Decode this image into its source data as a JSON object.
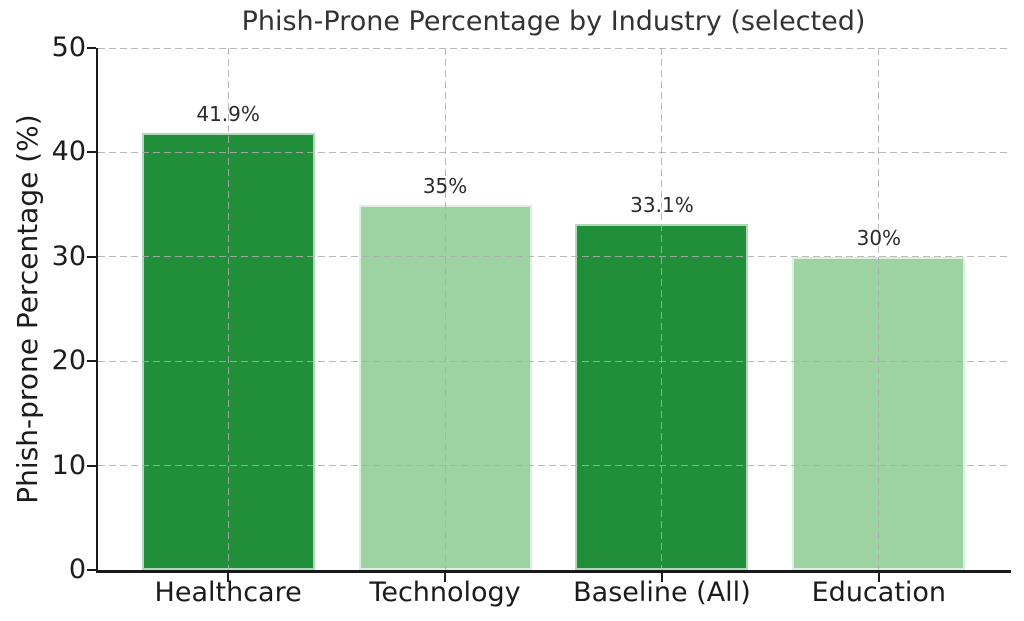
{
  "chart_data": {
    "type": "bar",
    "title": "Phish-Prone Percentage by Industry (selected)",
    "xlabel": "",
    "ylabel": "Phish-prone Percentage (%)",
    "categories": [
      "Healthcare",
      "Technology",
      "Baseline (All)",
      "Education"
    ],
    "values": [
      41.9,
      35,
      33.1,
      30
    ],
    "value_labels": [
      "41.9%",
      "35%",
      "33.1%",
      "30%"
    ],
    "series": [
      {
        "name": "Phish-prone percentage",
        "values": [
          41.9,
          35,
          33.1,
          30
        ]
      }
    ],
    "bar_colors": [
      "#218f3a",
      "#9dd3a3",
      "#218f3a",
      "#9dd3a3"
    ],
    "bar_edge_color": "#ffffff",
    "ylim": [
      0,
      50
    ],
    "yticks": [
      0,
      10,
      20,
      30,
      40,
      50
    ],
    "grid": {
      "visible": true,
      "style": "dashed",
      "color": "#adadad",
      "horizontal": true,
      "vertical": true,
      "drawn_over_bars": true
    },
    "legend_position": "none",
    "background_color": "#ffffff",
    "text_color": "#1c1c1c"
  }
}
